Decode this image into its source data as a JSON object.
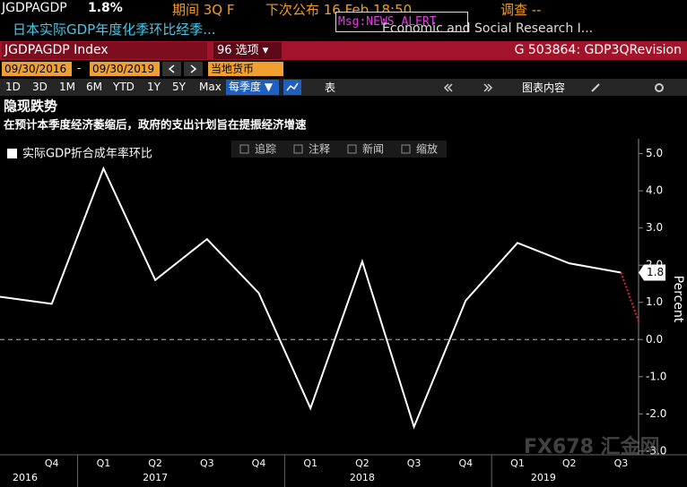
{
  "header": {
    "ticker": "JGDPAGDP",
    "last": "1.8%",
    "period": "期间 3Q F",
    "next_release": "下次公布 16 Feb 18:50",
    "msg": "Msg:NEWS ALERT",
    "survey": "调查 --",
    "description": "日本实际GDP年度化季环比经季...",
    "source": "Economic and Social Research I..."
  },
  "toolbar": {
    "security": "JGDPAGDP Index",
    "options": "96 选项 ▾",
    "page_id": "G 503864: GDP3QRevision",
    "start_date": "09/30/2016",
    "date_sep": "-",
    "end_date": "09/30/2019",
    "currency": "当地货币",
    "periods": [
      "1D",
      "3D",
      "1M",
      "6M",
      "YTD",
      "1Y",
      "5Y",
      "Max"
    ],
    "frequency": "每季度 ▼",
    "table": "表",
    "chart_content": "图表内容"
  },
  "chart_tools": [
    "追踪",
    "注释",
    "新闻",
    "缩放"
  ],
  "watermark": "FX678 汇金网",
  "chart_data": {
    "type": "line",
    "title": "隐现跌势",
    "subtitle": "在预计本季度经济萎缩后，政府的支出计划旨在提振经济增速",
    "categories": [
      null,
      "Q4",
      "Q1",
      "Q2",
      "Q3",
      "Q4",
      "Q1",
      "Q2",
      "Q3",
      "Q4",
      "Q1",
      "Q2",
      "Q3"
    ],
    "years": [
      "2016",
      "2017",
      "2018",
      "2019"
    ],
    "series": [
      {
        "name": "实际GDP折合成年率环比",
        "color": "#ffffff",
        "values": [
          1.15,
          0.96,
          4.6,
          1.6,
          2.7,
          1.25,
          -1.85,
          2.1,
          -2.35,
          1.05,
          2.6,
          2.05,
          1.8
        ]
      }
    ],
    "projection": {
      "color": "#e0242b",
      "x": [
        12,
        12.35
      ],
      "values": [
        1.8,
        0.45
      ]
    },
    "ylabel": "Percent",
    "ylim": [
      -3.1,
      5.4
    ],
    "yticks": [
      {
        "value": 5,
        "label": "5.0"
      },
      {
        "value": 4,
        "label": "4.0"
      },
      {
        "value": 3,
        "label": "3.0"
      },
      {
        "value": 2,
        "label": "2.0"
      },
      {
        "value": 1,
        "label": "1.0"
      },
      {
        "value": 0,
        "label": "0.0"
      },
      {
        "value": -1,
        "label": "-1.0"
      },
      {
        "value": -2,
        "label": "-2.0"
      },
      {
        "value": -3,
        "label": "-3.0"
      }
    ],
    "zero_line": true
  }
}
